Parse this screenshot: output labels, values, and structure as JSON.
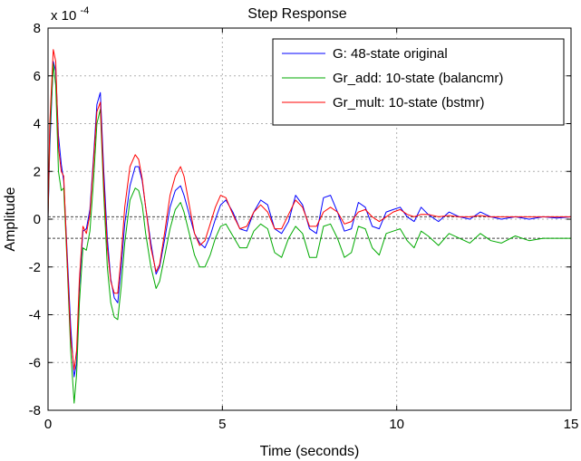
{
  "chart_data": {
    "type": "line",
    "title": "Step Response",
    "xlabel": "Time (seconds)",
    "ylabel": "Amplitude",
    "y_exponent_label": "x 10",
    "y_exponent_power": "-4",
    "xlim": [
      0,
      15
    ],
    "ylim": [
      -8,
      8
    ],
    "x_ticks": [
      0,
      5,
      10,
      15
    ],
    "y_ticks": [
      -8,
      -6,
      -4,
      -2,
      0,
      2,
      4,
      6,
      8
    ],
    "grid": true,
    "legend_position": "top-right",
    "steady_state_lines": [
      0.1,
      -0.8
    ],
    "series": [
      {
        "name": "G: 48-state original",
        "color": "#0000ff",
        "x": [
          0,
          0.05,
          0.15,
          0.22,
          0.3,
          0.38,
          0.45,
          0.55,
          0.65,
          0.75,
          0.82,
          0.9,
          1.0,
          1.1,
          1.2,
          1.3,
          1.4,
          1.5,
          1.6,
          1.7,
          1.8,
          1.9,
          2.0,
          2.1,
          2.2,
          2.35,
          2.5,
          2.6,
          2.7,
          2.8,
          2.95,
          3.1,
          3.2,
          3.35,
          3.5,
          3.65,
          3.8,
          3.9,
          4.05,
          4.2,
          4.35,
          4.5,
          4.65,
          4.8,
          4.95,
          5.1,
          5.3,
          5.5,
          5.7,
          5.9,
          6.1,
          6.3,
          6.5,
          6.7,
          6.9,
          7.1,
          7.3,
          7.5,
          7.7,
          7.9,
          8.1,
          8.3,
          8.5,
          8.7,
          8.9,
          9.1,
          9.3,
          9.5,
          9.7,
          9.9,
          10.1,
          10.3,
          10.5,
          10.7,
          10.9,
          11.2,
          11.5,
          11.8,
          12.1,
          12.4,
          12.7,
          13.0,
          13.4,
          13.8,
          14.2,
          14.6,
          15.0
        ],
        "y": [
          0,
          3.0,
          6.6,
          6.2,
          3.5,
          2.3,
          1.6,
          -1.5,
          -4.5,
          -6.6,
          -6.0,
          -2.8,
          -0.5,
          -0.4,
          0.4,
          2.5,
          4.8,
          5.3,
          2.0,
          -0.8,
          -2.5,
          -3.3,
          -3.5,
          -2.0,
          -0.2,
          1.4,
          2.2,
          2.2,
          1.6,
          0.5,
          -1.0,
          -2.3,
          -2.0,
          -0.8,
          0.5,
          1.2,
          1.4,
          1.0,
          0.2,
          -0.6,
          -1.0,
          -1.2,
          -0.7,
          0.0,
          0.6,
          0.8,
          0.3,
          -0.4,
          -0.5,
          0.3,
          0.8,
          0.6,
          -0.4,
          -0.6,
          -0.1,
          1.0,
          0.6,
          -0.4,
          -0.6,
          0.9,
          1.0,
          0.3,
          -0.5,
          -0.4,
          0.7,
          0.5,
          -0.3,
          -0.4,
          0.3,
          0.4,
          0.5,
          0.1,
          -0.1,
          0.5,
          0.2,
          -0.1,
          0.3,
          0.1,
          0.0,
          0.3,
          0.1,
          0.0,
          0.1,
          0.0,
          0.1,
          0.05,
          0.1
        ]
      },
      {
        "name": "Gr_add: 10-state (balancmr)",
        "color": "#00aa00",
        "x": [
          0,
          0.05,
          0.15,
          0.22,
          0.3,
          0.38,
          0.45,
          0.55,
          0.65,
          0.75,
          0.82,
          0.9,
          1.0,
          1.1,
          1.2,
          1.3,
          1.4,
          1.5,
          1.6,
          1.7,
          1.8,
          1.9,
          2.0,
          2.1,
          2.2,
          2.35,
          2.5,
          2.6,
          2.7,
          2.8,
          2.95,
          3.1,
          3.2,
          3.35,
          3.5,
          3.65,
          3.8,
          3.9,
          4.05,
          4.2,
          4.35,
          4.5,
          4.65,
          4.8,
          4.95,
          5.1,
          5.3,
          5.5,
          5.7,
          5.9,
          6.1,
          6.3,
          6.5,
          6.7,
          6.9,
          7.1,
          7.3,
          7.5,
          7.7,
          7.9,
          8.1,
          8.3,
          8.5,
          8.7,
          8.9,
          9.1,
          9.3,
          9.5,
          9.7,
          9.9,
          10.1,
          10.3,
          10.5,
          10.7,
          10.9,
          11.2,
          11.5,
          11.8,
          12.1,
          12.4,
          12.7,
          13.0,
          13.4,
          13.8,
          14.2,
          14.6,
          15.0
        ],
        "y": [
          0,
          3.5,
          6.5,
          5.6,
          2.0,
          1.2,
          1.3,
          -2.0,
          -5.5,
          -7.7,
          -6.5,
          -3.5,
          -1.2,
          -1.3,
          -0.5,
          1.5,
          4.0,
          4.6,
          1.0,
          -2.0,
          -3.5,
          -4.1,
          -4.2,
          -2.8,
          -1.0,
          0.8,
          1.3,
          1.2,
          0.6,
          -0.6,
          -2.0,
          -2.9,
          -2.6,
          -1.5,
          -0.4,
          0.4,
          0.7,
          0.3,
          -0.6,
          -1.5,
          -2.0,
          -2.0,
          -1.5,
          -0.8,
          -0.3,
          -0.2,
          -0.7,
          -1.2,
          -1.2,
          -0.5,
          -0.2,
          -0.4,
          -1.4,
          -1.6,
          -0.8,
          -0.3,
          -0.6,
          -1.6,
          -1.6,
          -0.3,
          -0.2,
          -0.8,
          -1.6,
          -1.4,
          -0.3,
          -0.4,
          -1.2,
          -1.5,
          -0.6,
          -0.5,
          -0.4,
          -0.9,
          -1.2,
          -0.5,
          -0.7,
          -1.1,
          -0.6,
          -0.8,
          -1.0,
          -0.6,
          -0.9,
          -1.0,
          -0.7,
          -0.9,
          -0.8,
          -0.8,
          -0.8
        ]
      },
      {
        "name": "Gr_mult: 10-state (bstmr)",
        "color": "#ff0000",
        "x": [
          0,
          0.05,
          0.15,
          0.22,
          0.3,
          0.38,
          0.45,
          0.55,
          0.65,
          0.75,
          0.82,
          0.9,
          1.0,
          1.1,
          1.2,
          1.3,
          1.4,
          1.5,
          1.6,
          1.7,
          1.8,
          1.9,
          2.0,
          2.1,
          2.2,
          2.35,
          2.5,
          2.6,
          2.7,
          2.8,
          2.95,
          3.1,
          3.2,
          3.35,
          3.5,
          3.65,
          3.8,
          3.9,
          4.05,
          4.2,
          4.35,
          4.5,
          4.65,
          4.8,
          4.95,
          5.1,
          5.3,
          5.5,
          5.7,
          5.9,
          6.1,
          6.3,
          6.5,
          6.7,
          6.9,
          7.1,
          7.3,
          7.5,
          7.7,
          7.9,
          8.1,
          8.3,
          8.5,
          8.7,
          8.9,
          9.1,
          9.3,
          9.5,
          9.7,
          9.9,
          10.1,
          10.3,
          10.5,
          10.7,
          10.9,
          11.2,
          11.5,
          11.8,
          12.1,
          12.4,
          12.7,
          13.0,
          13.4,
          13.8,
          14.2,
          14.6,
          15.0
        ],
        "y": [
          0,
          4.0,
          7.1,
          6.6,
          3.0,
          2.0,
          1.8,
          -1.8,
          -5.0,
          -6.3,
          -5.5,
          -2.5,
          -0.3,
          -0.6,
          0.2,
          2.3,
          4.5,
          4.9,
          1.5,
          -1.2,
          -2.6,
          -3.1,
          -3.1,
          -1.5,
          0.5,
          2.2,
          2.7,
          2.5,
          1.7,
          0.5,
          -1.2,
          -2.2,
          -1.9,
          -0.5,
          1.0,
          1.8,
          2.2,
          1.8,
          0.6,
          -0.6,
          -1.1,
          -0.9,
          -0.2,
          0.5,
          1.0,
          0.9,
          0.2,
          -0.4,
          -0.3,
          0.3,
          0.6,
          0.3,
          -0.4,
          -0.4,
          0.2,
          0.8,
          0.5,
          -0.3,
          -0.3,
          0.3,
          0.5,
          0.3,
          -0.2,
          -0.1,
          0.3,
          0.4,
          0.1,
          -0.1,
          0.1,
          0.3,
          0.4,
          0.2,
          0.1,
          0.2,
          0.2,
          0.1,
          0.15,
          0.1,
          0.1,
          0.15,
          0.1,
          0.1,
          0.1,
          0.1,
          0.1,
          0.1,
          0.1
        ]
      }
    ]
  }
}
